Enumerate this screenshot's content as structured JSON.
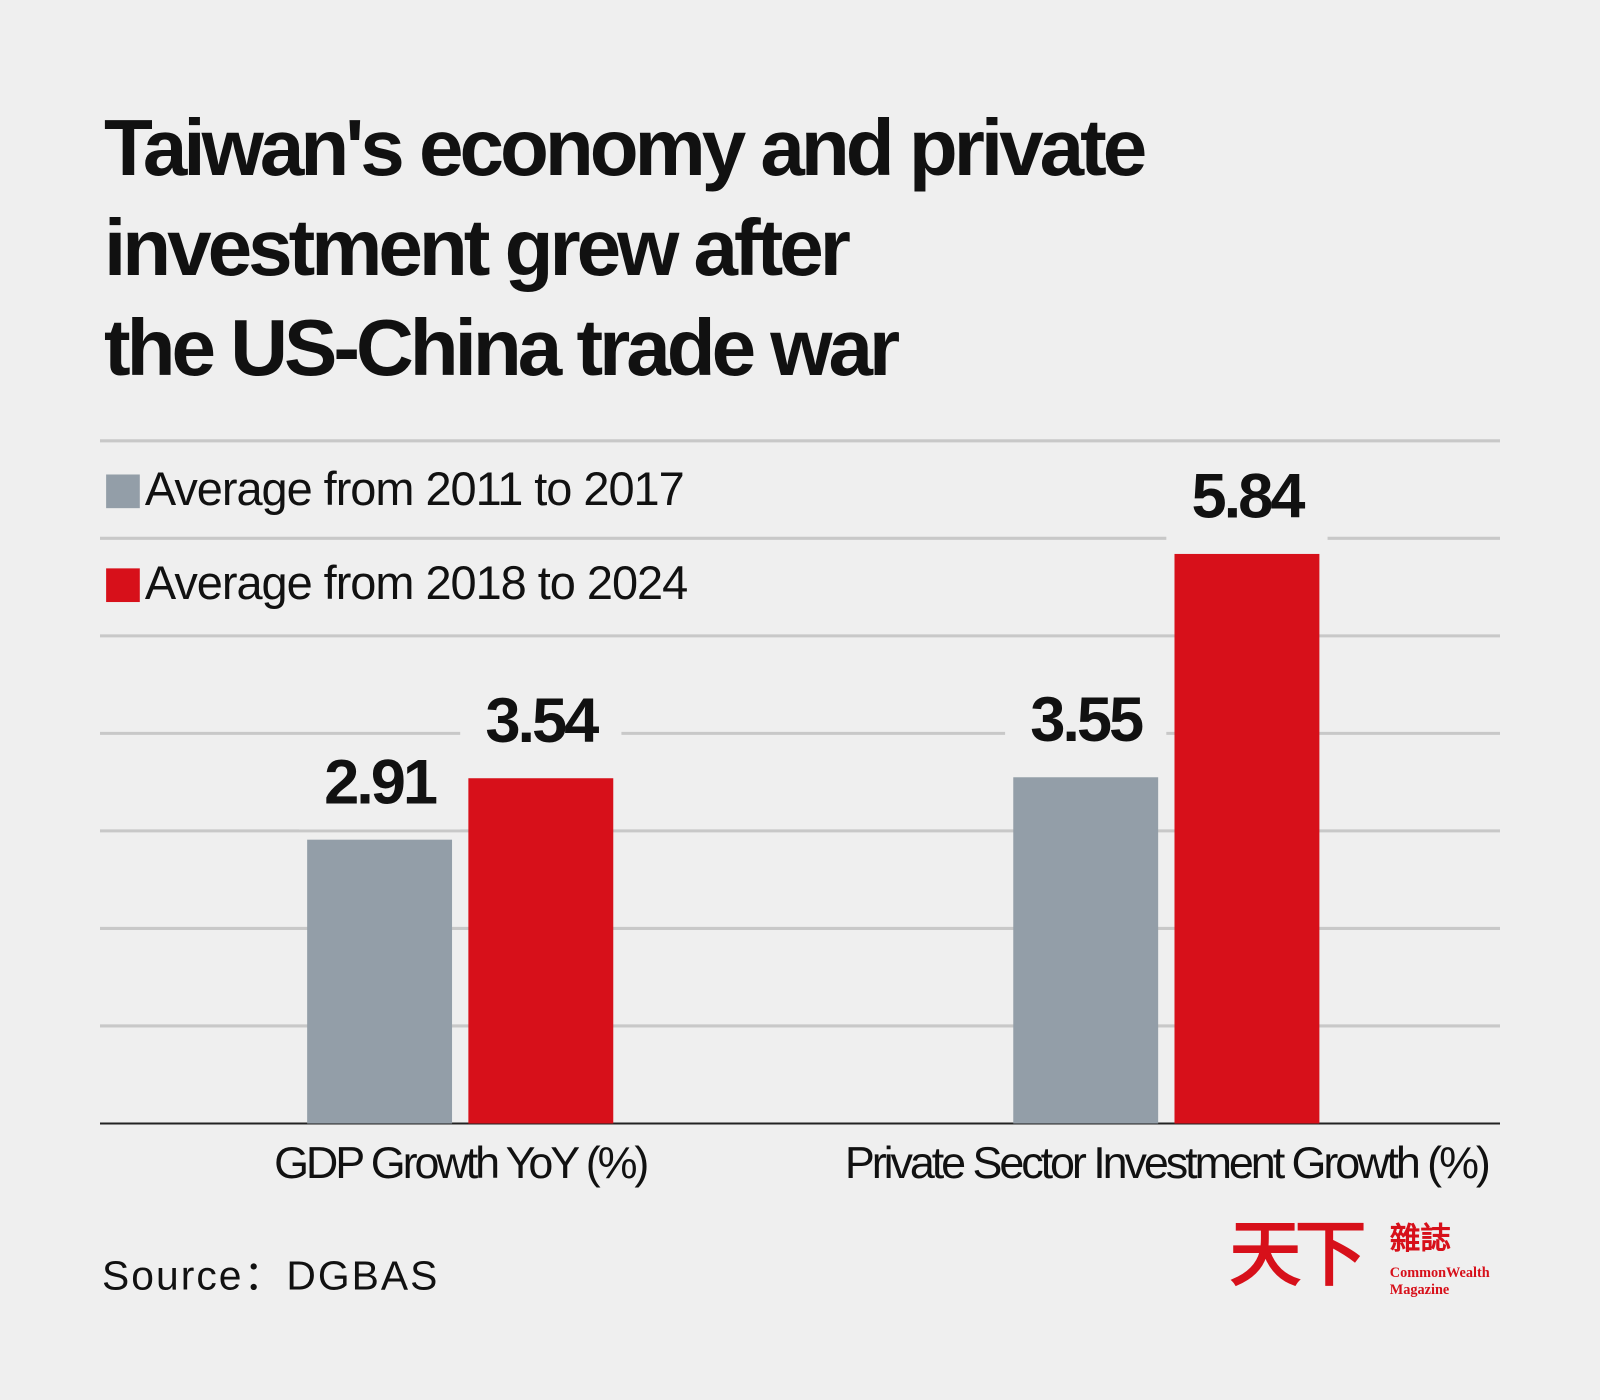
{
  "chart_data": {
    "type": "bar",
    "title": "Taiwan's economy and private\ninvestment grew after\nthe US-China trade war",
    "categories": [
      "GDP Growth YoY (%)",
      "Private Sector Investment Growth (%)"
    ],
    "series": [
      {
        "name": "Average from 2011 to 2017",
        "color": "#939ea8",
        "values": [
          2.91,
          3.55
        ]
      },
      {
        "name": "Average from 2018 to 2024",
        "color": "#d7101a",
        "values": [
          3.54,
          5.84
        ]
      }
    ],
    "ylim": [
      0,
      7
    ],
    "yticks": [
      0,
      1,
      2,
      3,
      4,
      5,
      6,
      7
    ],
    "grid": true,
    "legend": "top-left",
    "source": "Source：DGBAS"
  },
  "brand": {
    "mark": "天下",
    "chinese": "雜誌",
    "english": "CommonWealth",
    "sub": "Magazine"
  }
}
